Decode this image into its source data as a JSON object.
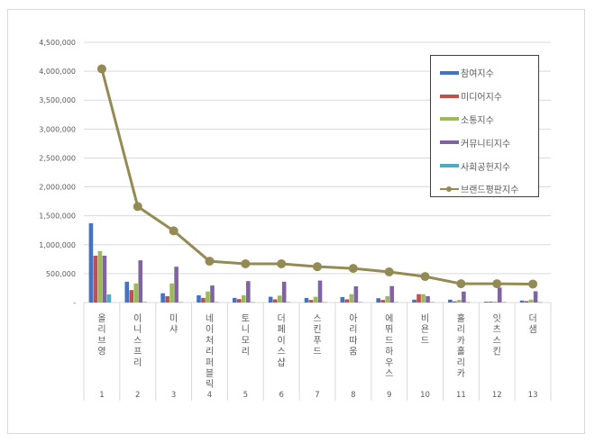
{
  "chart_data": {
    "type": "bar+line",
    "title": "",
    "xlabel": "",
    "ylabel": "",
    "ylim": [
      0,
      4500000
    ],
    "yticks": [
      0,
      500000,
      1000000,
      1500000,
      2000000,
      2500000,
      3000000,
      3500000,
      4000000,
      4500000
    ],
    "ytick_labels": [
      "-",
      "500,000",
      "1,000,000",
      "1,500,000",
      "2,000,000",
      "2,500,000",
      "3,000,000",
      "3,500,000",
      "4,000,000",
      "4,500,000"
    ],
    "grid": true,
    "legend_position": "upper right (inside)",
    "categories": [
      "올리브영",
      "이니스프리",
      "미샤",
      "네이처리퍼블릭",
      "토니모리",
      "더페이스샵",
      "스킨푸드",
      "아리따움",
      "에뛰드하우스",
      "비욘드",
      "홀리카홀리카",
      "잇츠스킨",
      "더샘"
    ],
    "ranks": [
      "1",
      "2",
      "3",
      "4",
      "5",
      "6",
      "7",
      "8",
      "9",
      "10",
      "11",
      "12",
      "13"
    ],
    "series": [
      {
        "name": "참여지수",
        "type": "bar",
        "color": "#4472c4",
        "values": [
          1370000,
          360000,
          160000,
          125000,
          80000,
          100000,
          80000,
          95000,
          75000,
          50000,
          50000,
          15000,
          35000
        ]
      },
      {
        "name": "미디어지수",
        "type": "bar",
        "color": "#c0504d",
        "values": [
          810000,
          215000,
          110000,
          80000,
          60000,
          55000,
          45000,
          55000,
          45000,
          145000,
          20000,
          15000,
          25000
        ]
      },
      {
        "name": "소통지수",
        "type": "bar",
        "color": "#9bbb59",
        "values": [
          890000,
          330000,
          330000,
          190000,
          125000,
          120000,
          100000,
          145000,
          110000,
          145000,
          45000,
          15000,
          50000
        ]
      },
      {
        "name": "커뮤니티지수",
        "type": "bar",
        "color": "#8064a2",
        "values": [
          810000,
          730000,
          620000,
          295000,
          370000,
          360000,
          380000,
          280000,
          285000,
          110000,
          190000,
          260000,
          195000
        ]
      },
      {
        "name": "사회공헌지수",
        "type": "bar",
        "color": "#4bacc6",
        "values": [
          140000,
          10000,
          8000,
          8000,
          8000,
          8000,
          8000,
          8000,
          8000,
          8000,
          8000,
          8000,
          8000
        ]
      },
      {
        "name": "브랜드평판지수",
        "type": "line",
        "color": "#948a54",
        "values": [
          4040000,
          1660000,
          1240000,
          715000,
          670000,
          670000,
          620000,
          590000,
          530000,
          450000,
          325000,
          325000,
          320000
        ]
      }
    ]
  }
}
